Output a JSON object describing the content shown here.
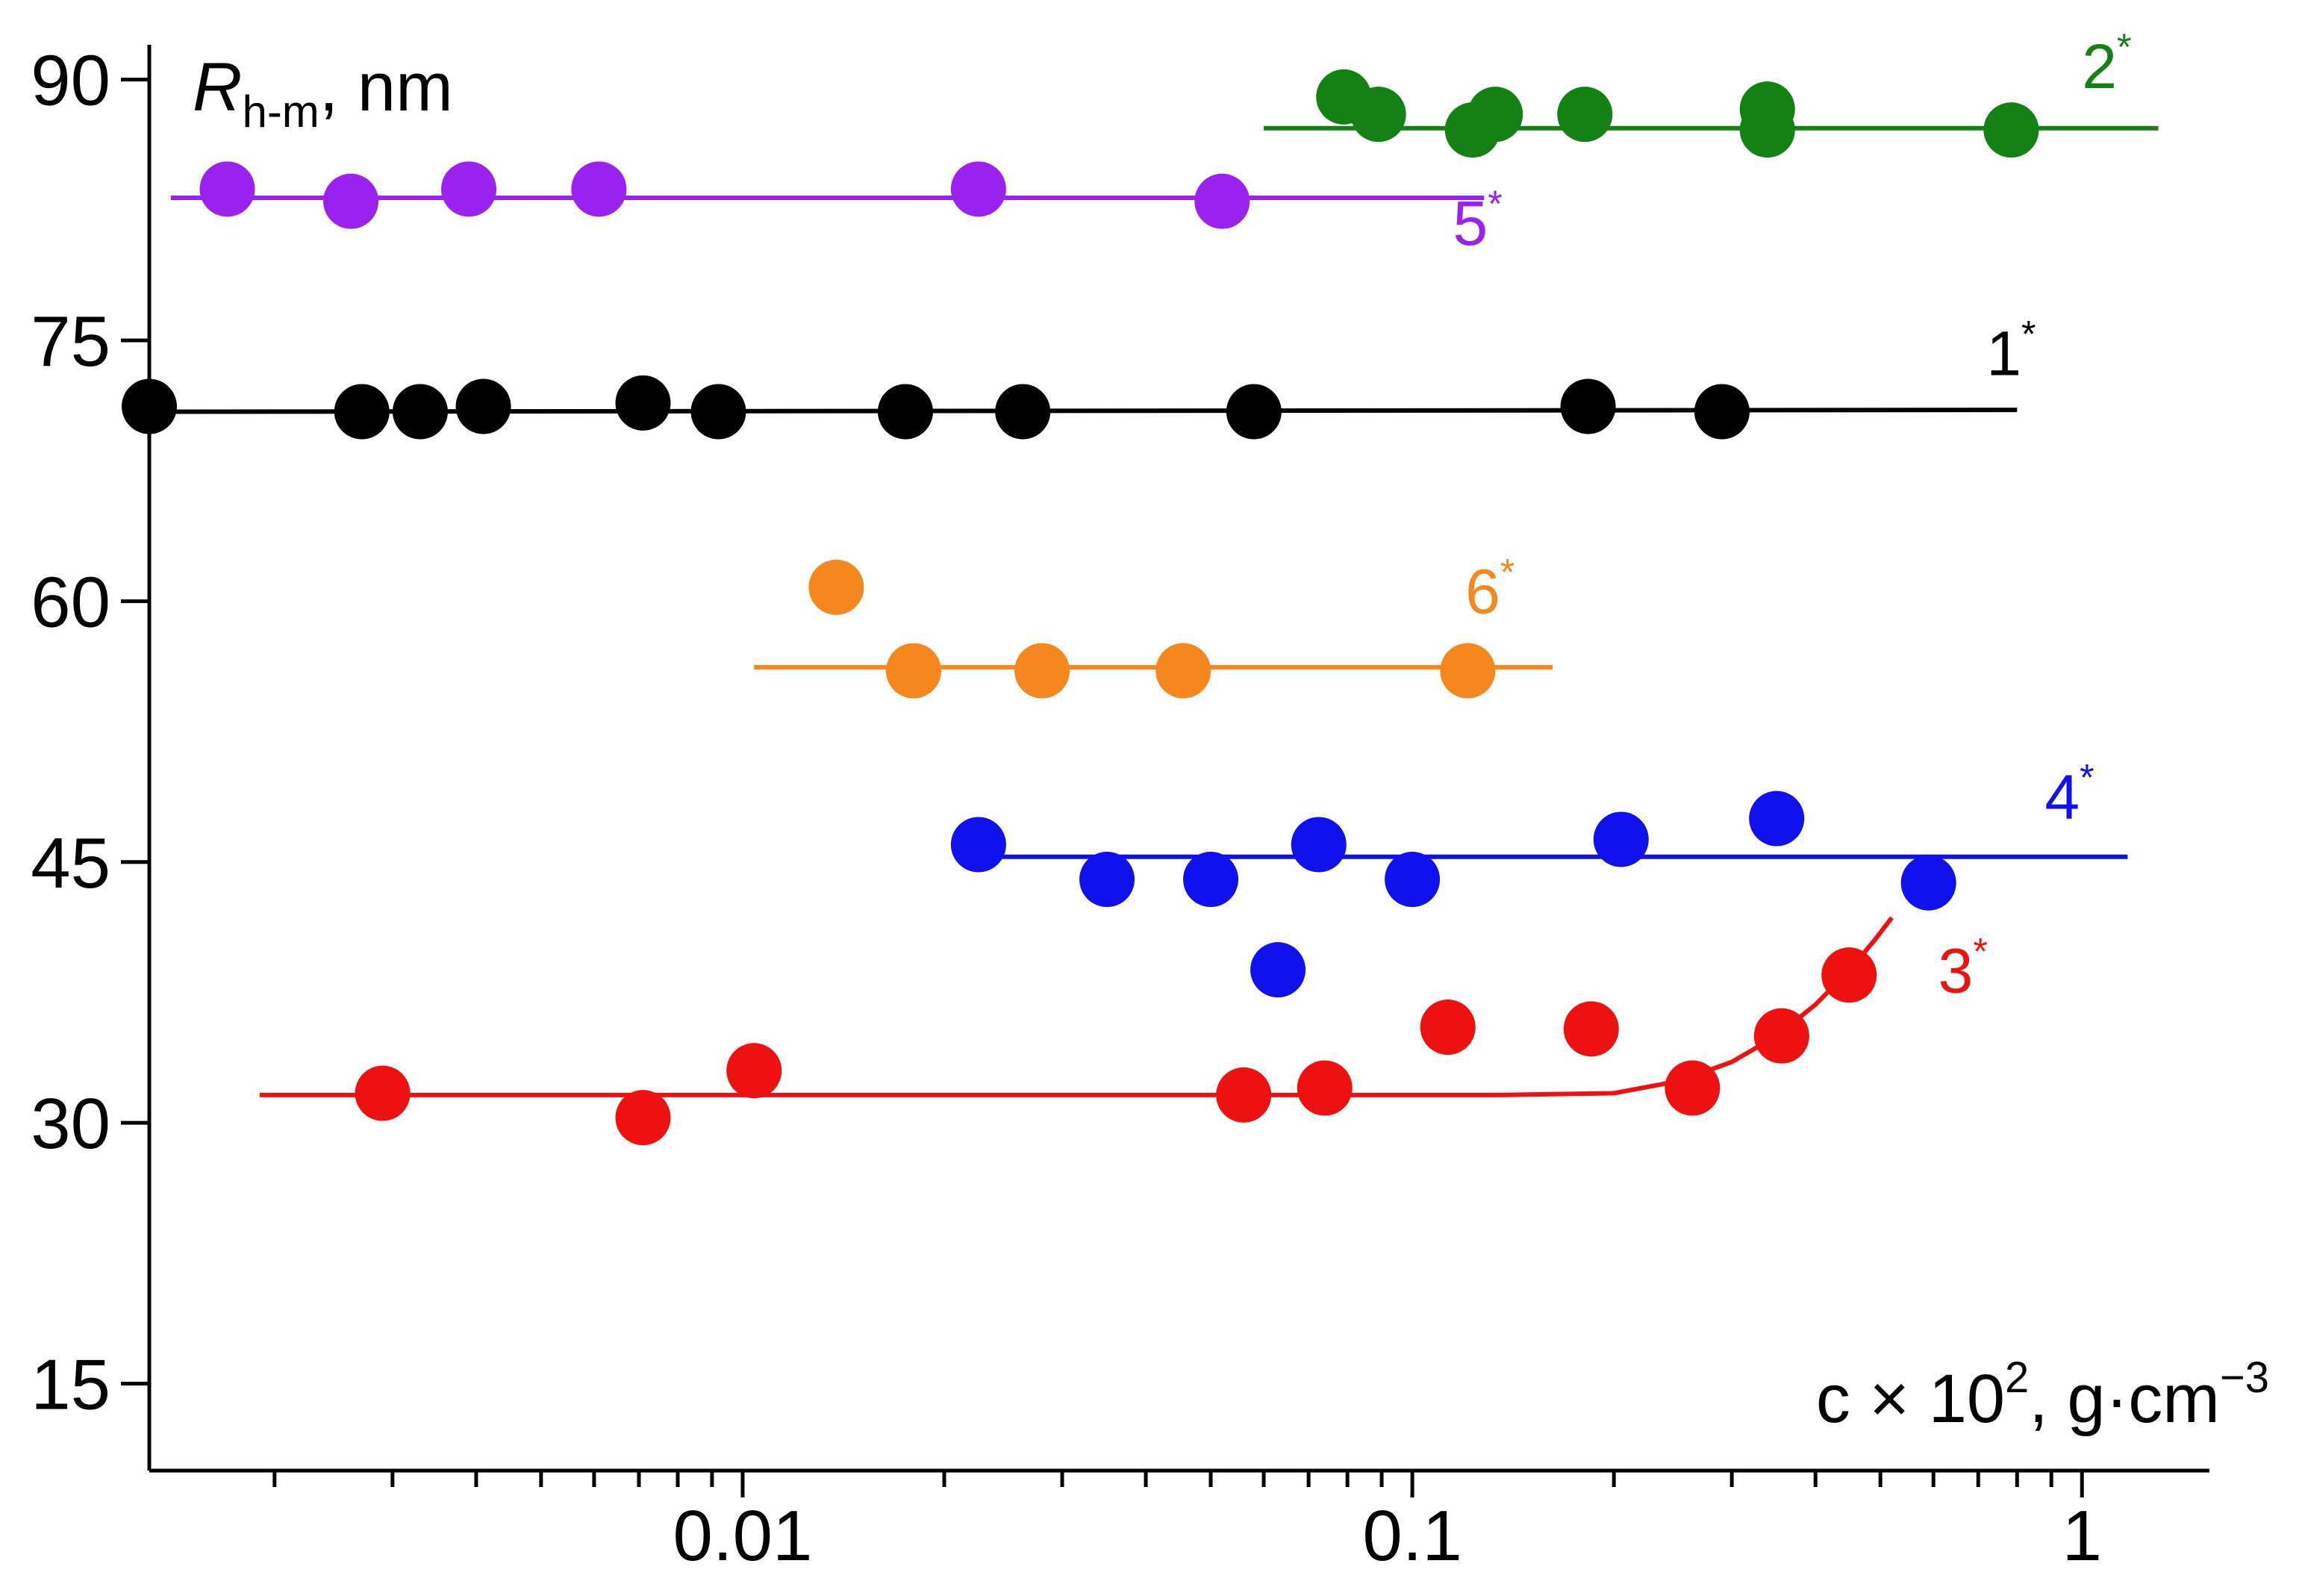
{
  "chart_data": {
    "type": "scatter",
    "title": "",
    "ylabel": {
      "main": "R",
      "sub": "h-m",
      "rest": ", nm"
    },
    "xlabel": {
      "main": "c × 10",
      "sup": "2",
      "rest": ", g·cm",
      "sup2": "−3"
    },
    "x_scale": "log",
    "xlim": [
      0.0013,
      1.55
    ],
    "ylim": [
      10,
      92
    ],
    "y_ticks": [
      15,
      30,
      45,
      60,
      75,
      90
    ],
    "x_ticks": [
      0.01,
      0.1,
      1
    ],
    "x_tick_labels": [
      "0.01",
      "0.1",
      "1"
    ],
    "grid": false,
    "series": [
      {
        "name": "1",
        "label": "1",
        "label_sup": "*",
        "color": "#000000",
        "points": [
          [
            0.0013,
            71.2
          ],
          [
            0.0027,
            70.9
          ],
          [
            0.0033,
            70.9
          ],
          [
            0.0041,
            71.2
          ],
          [
            0.0071,
            71.4
          ],
          [
            0.0092,
            70.9
          ],
          [
            0.0175,
            70.9
          ],
          [
            0.0262,
            70.9
          ],
          [
            0.058,
            70.9
          ],
          [
            0.183,
            71.2
          ],
          [
            0.29,
            70.9
          ]
        ],
        "fit": [
          [
            0.0013,
            70.9
          ],
          [
            0.8,
            71.0
          ]
        ],
        "label_at": [
          0.72,
          73
        ]
      },
      {
        "name": "2",
        "label": "2",
        "label_sup": "*",
        "color": "#158015",
        "points": [
          [
            0.079,
            89.0
          ],
          [
            0.089,
            88.0
          ],
          [
            0.123,
            87.1
          ],
          [
            0.133,
            88.0
          ],
          [
            0.181,
            88.0
          ],
          [
            0.339,
            88.3
          ],
          [
            0.339,
            87.1
          ],
          [
            0.784,
            87.1
          ]
        ],
        "fit": [
          [
            0.06,
            87.2
          ],
          [
            1.3,
            87.2
          ]
        ],
        "label_at": [
          1.0,
          89.5
        ]
      },
      {
        "name": "3",
        "label": "3",
        "label_sup": "*",
        "color": "#ee1111",
        "points": [
          [
            0.0029,
            31.7
          ],
          [
            0.0071,
            30.3
          ],
          [
            0.0104,
            33.0
          ],
          [
            0.056,
            31.6
          ],
          [
            0.074,
            32.0
          ],
          [
            0.113,
            35.5
          ],
          [
            0.185,
            35.4
          ],
          [
            0.262,
            32.0
          ],
          [
            0.356,
            35.0
          ],
          [
            0.449,
            38.5
          ]
        ],
        "fit": [
          [
            0.0019,
            31.6
          ],
          [
            0.135,
            31.6
          ],
          [
            0.2,
            31.7
          ],
          [
            0.25,
            32.4
          ],
          [
            0.3,
            33.5
          ],
          [
            0.35,
            35.0
          ],
          [
            0.4,
            36.8
          ],
          [
            0.45,
            38.8
          ],
          [
            0.49,
            40.5
          ],
          [
            0.52,
            41.8
          ]
        ],
        "label_at": [
          0.61,
          37.5
        ]
      },
      {
        "name": "4",
        "label": "4",
        "label_sup": "*",
        "color": "#1111ee",
        "points": [
          [
            0.0225,
            46.0
          ],
          [
            0.035,
            44.0
          ],
          [
            0.05,
            44.0
          ],
          [
            0.0725,
            46.0
          ],
          [
            0.1,
            44.0
          ],
          [
            0.205,
            46.3
          ],
          [
            0.35,
            47.5
          ],
          [
            0.59,
            43.8
          ],
          [
            0.063,
            38.8
          ]
        ],
        "fit": [
          [
            0.022,
            45.3
          ],
          [
            1.17,
            45.3
          ]
        ],
        "label_at": [
          0.88,
          47.5
        ]
      },
      {
        "name": "5",
        "label": "5",
        "label_sup": "*",
        "color": "#9a22ee",
        "points": [
          [
            0.0017,
            83.7
          ],
          [
            0.0026,
            83.0
          ],
          [
            0.0039,
            83.7
          ],
          [
            0.0061,
            83.7
          ],
          [
            0.0225,
            83.7
          ],
          [
            0.052,
            83.0
          ]
        ],
        "fit": [
          [
            0.0014,
            83.2
          ],
          [
            0.128,
            83.2
          ]
        ],
        "label_at": [
          0.115,
          80.5
        ]
      },
      {
        "name": "6",
        "label": "6",
        "label_sup": "*",
        "color": "#f5871f",
        "points": [
          [
            0.0138,
            60.8
          ],
          [
            0.018,
            56.0
          ],
          [
            0.028,
            56.0
          ],
          [
            0.0455,
            56.0
          ],
          [
            0.121,
            56.0
          ]
        ],
        "fit": [
          [
            0.0104,
            56.2
          ],
          [
            0.162,
            56.2
          ]
        ],
        "label_at": [
          0.12,
          59.3
        ]
      }
    ]
  }
}
